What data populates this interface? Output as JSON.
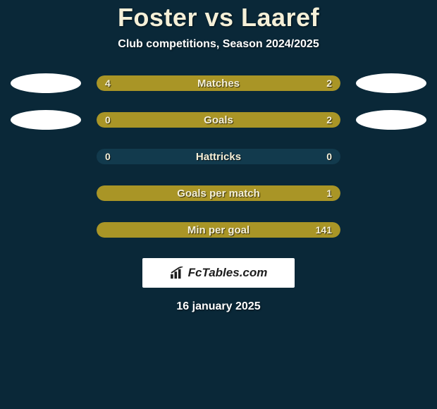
{
  "header": {
    "title": "Foster vs Laaref",
    "subtitle": "Club competitions, Season 2024/2025"
  },
  "colors": {
    "background": "#0a2838",
    "bar_bg": "#123a4d",
    "bar_fill": "#a99526",
    "text_light": "#f5f0d8"
  },
  "stats": [
    {
      "label": "Matches",
      "left_value": "4",
      "right_value": "2",
      "left_pct": 66,
      "right_pct": 34,
      "show_left_avatar": true,
      "show_right_avatar": true
    },
    {
      "label": "Goals",
      "left_value": "0",
      "right_value": "2",
      "left_pct": 18,
      "right_pct": 82,
      "show_left_avatar": true,
      "show_right_avatar": true
    },
    {
      "label": "Hattricks",
      "left_value": "0",
      "right_value": "0",
      "left_pct": 0,
      "right_pct": 0,
      "show_left_avatar": false,
      "show_right_avatar": false
    },
    {
      "label": "Goals per match",
      "left_value": "",
      "right_value": "1",
      "left_pct": 5,
      "right_pct": 95,
      "show_left_avatar": false,
      "show_right_avatar": false
    },
    {
      "label": "Min per goal",
      "left_value": "",
      "right_value": "141",
      "left_pct": 7,
      "right_pct": 93,
      "show_left_avatar": false,
      "show_right_avatar": false
    }
  ],
  "branding": {
    "text": "FcTables.com"
  },
  "footer": {
    "date": "16 january 2025"
  }
}
